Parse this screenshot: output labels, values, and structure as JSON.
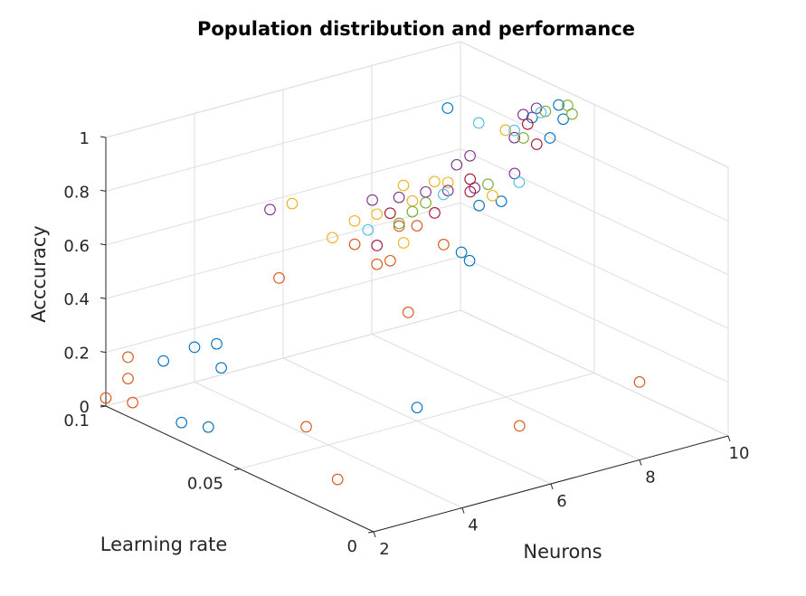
{
  "chart_data": {
    "type": "scatter",
    "projection": "3d",
    "title": "Population distribution and performance",
    "xlabel": "Neurons",
    "ylabel": "Learning rate",
    "zlabel": "Acccuracy",
    "xlim": [
      2,
      10
    ],
    "ylim": [
      0,
      0.1
    ],
    "zlim": [
      0,
      1
    ],
    "xticks": [
      "2",
      "4",
      "6",
      "8",
      "10"
    ],
    "yticks": [
      "0",
      "0.05",
      "0.1"
    ],
    "zticks": [
      "0",
      "0.2",
      "0.4",
      "0.6",
      "0.8",
      "1"
    ],
    "grid": true,
    "series": [
      {
        "color": "#0072BD",
        "points": [
          [
            2.5,
            0.08,
            0.01
          ],
          [
            2.5,
            0.07,
            0.04
          ],
          [
            3.3,
            0.1,
            0.11
          ],
          [
            4.0,
            0.1,
            0.13
          ],
          [
            4.0,
            0.09,
            0.1
          ],
          [
            4.5,
            0.1,
            0.12
          ],
          [
            6.0,
            0.05,
            0.05
          ],
          [
            6.7,
            0.045,
            0.62
          ],
          [
            6.4,
            0.037,
            0.64
          ],
          [
            7.4,
            0.05,
            0.74
          ],
          [
            7.6,
            0.045,
            0.77
          ],
          [
            9.8,
            0.06,
            0.96
          ],
          [
            9.2,
            0.06,
            0.94
          ],
          [
            9.6,
            0.055,
            0.94
          ],
          [
            9.0,
            0.05,
            0.92
          ],
          [
            8.2,
            0.075,
            0.95
          ]
        ]
      },
      {
        "color": "#D95319",
        "points": [
          [
            2.0,
            0.1,
            0.03
          ],
          [
            2.0,
            0.09,
            0.06
          ],
          [
            2.5,
            0.1,
            0.16
          ],
          [
            2.5,
            0.1,
            0.08
          ],
          [
            3.5,
            0.05,
            0.09
          ],
          [
            3.0,
            0.03,
            0.01
          ],
          [
            4.7,
            0.08,
            0.45
          ],
          [
            5.7,
            0.06,
            0.55
          ],
          [
            6.0,
            0.06,
            0.55
          ],
          [
            5.5,
            0.045,
            0.45
          ],
          [
            6.5,
            0.02,
            0.1
          ],
          [
            8.0,
            0.0,
            0.29
          ],
          [
            5.5,
            0.065,
            0.61
          ],
          [
            6.3,
            0.055,
            0.69
          ],
          [
            6.6,
            0.05,
            0.63
          ],
          [
            6.2,
            0.06,
            0.67
          ]
        ]
      },
      {
        "color": "#EDB120",
        "points": [
          [
            5.3,
            0.07,
            0.62
          ],
          [
            5.6,
            0.09,
            0.64
          ],
          [
            5.8,
            0.07,
            0.66
          ],
          [
            6.0,
            0.055,
            0.64
          ],
          [
            6.0,
            0.065,
            0.7
          ],
          [
            6.5,
            0.06,
            0.75
          ],
          [
            6.6,
            0.065,
            0.78
          ],
          [
            7.0,
            0.06,
            0.8
          ],
          [
            7.0,
            0.055,
            0.82
          ],
          [
            8.6,
            0.06,
            0.92
          ],
          [
            7.4,
            0.045,
            0.8
          ]
        ]
      },
      {
        "color": "#7E2F8E",
        "points": [
          [
            5.1,
            0.09,
            0.64
          ],
          [
            6.2,
            0.07,
            0.72
          ],
          [
            6.5,
            0.065,
            0.74
          ],
          [
            6.8,
            0.06,
            0.77
          ],
          [
            7.0,
            0.055,
            0.79
          ],
          [
            7.3,
            0.05,
            0.81
          ],
          [
            7.9,
            0.045,
            0.86
          ],
          [
            8.5,
            0.055,
            0.92
          ],
          [
            9.0,
            0.06,
            0.96
          ],
          [
            9.3,
            0.06,
            0.97
          ],
          [
            7.8,
            0.06,
            0.86
          ],
          [
            7.5,
            0.06,
            0.84
          ]
        ]
      },
      {
        "color": "#77AC30",
        "points": [
          [
            6.2,
            0.06,
            0.68
          ],
          [
            6.5,
            0.06,
            0.71
          ],
          [
            6.8,
            0.06,
            0.73
          ],
          [
            7.6,
            0.05,
            0.81
          ],
          [
            8.7,
            0.055,
            0.91
          ],
          [
            9.5,
            0.06,
            0.95
          ],
          [
            10.0,
            0.06,
            0.95
          ],
          [
            9.8,
            0.055,
            0.95
          ]
        ]
      },
      {
        "color": "#4DBEEE",
        "points": [
          [
            5.8,
            0.065,
            0.65
          ],
          [
            6.9,
            0.055,
            0.78
          ],
          [
            7.7,
            0.04,
            0.86
          ],
          [
            8.6,
            0.07,
            0.9
          ],
          [
            8.8,
            0.06,
            0.91
          ],
          [
            9.4,
            0.06,
            0.95
          ]
        ]
      },
      {
        "color": "#A2142F",
        "points": [
          [
            5.7,
            0.06,
            0.62
          ],
          [
            6.3,
            0.065,
            0.69
          ],
          [
            6.7,
            0.055,
            0.72
          ],
          [
            7.2,
            0.05,
            0.8
          ],
          [
            7.5,
            0.055,
            0.81
          ],
          [
            8.7,
            0.05,
            0.91
          ],
          [
            9.1,
            0.06,
            0.92
          ]
        ]
      }
    ]
  }
}
